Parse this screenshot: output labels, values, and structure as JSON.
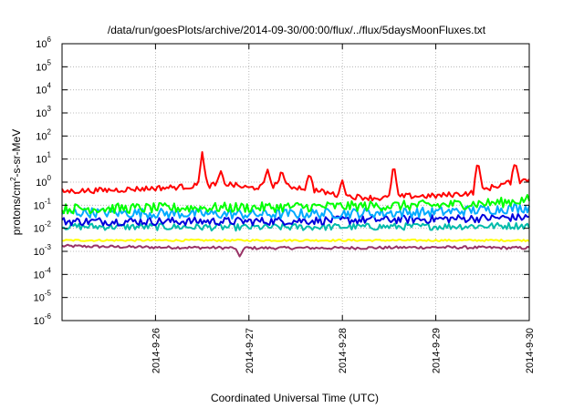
{
  "chart_data": {
    "type": "line",
    "title": "/data/run/goesPlots/archive/2014-09-30/00:00/flux/../flux/5daysMoonFluxes.txt",
    "xlabel": "Coordinated Universal Time (UTC)",
    "ylabel": {
      "prefix": "protons/cm",
      "superscript": "2",
      "suffix": "-s-sr-MeV"
    },
    "y_scale": "log",
    "ylim": [
      1e-06,
      1000000.0
    ],
    "y_ticks": [
      {
        "value": 1e-06,
        "base": "10",
        "exp": "-6"
      },
      {
        "value": 1e-05,
        "base": "10",
        "exp": "-5"
      },
      {
        "value": 0.0001,
        "base": "10",
        "exp": "-4"
      },
      {
        "value": 0.001,
        "base": "10",
        "exp": "-3"
      },
      {
        "value": 0.01,
        "base": "10",
        "exp": "-2"
      },
      {
        "value": 0.1,
        "base": "10",
        "exp": "-1"
      },
      {
        "value": 1,
        "base": "10",
        "exp": "0"
      },
      {
        "value": 10,
        "base": "10",
        "exp": "1"
      },
      {
        "value": 100,
        "base": "10",
        "exp": "2"
      },
      {
        "value": 1000,
        "base": "10",
        "exp": "3"
      },
      {
        "value": 10000,
        "base": "10",
        "exp": "4"
      },
      {
        "value": 100000,
        "base": "10",
        "exp": "5"
      },
      {
        "value": 1000000,
        "base": "10",
        "exp": "6"
      }
    ],
    "xlim": [
      "2014-09-25 00:00",
      "2014-09-30 00:00"
    ],
    "x_ticks": [
      {
        "value": "2014-09-26 00:00",
        "label": "2014-9-26"
      },
      {
        "value": "2014-09-27 00:00",
        "label": "2014-9-27"
      },
      {
        "value": "2014-09-28 00:00",
        "label": "2014-9-28"
      },
      {
        "value": "2014-09-29 00:00",
        "label": "2014-9-29"
      },
      {
        "value": "2014-09-30 00:00",
        "label": "2014-9-30"
      }
    ],
    "grid": true,
    "series": [
      {
        "color": "#ff0000",
        "baseline": [
          [
            0.0,
            0.4
          ],
          [
            0.5,
            0.45
          ],
          [
            1.0,
            0.55
          ],
          [
            1.2,
            0.6
          ],
          [
            1.5,
            0.7
          ],
          [
            1.8,
            0.8
          ],
          [
            2.0,
            0.55
          ],
          [
            2.3,
            0.75
          ],
          [
            2.6,
            0.55
          ],
          [
            3.0,
            0.25
          ],
          [
            3.4,
            0.2
          ],
          [
            3.7,
            0.25
          ],
          [
            4.0,
            0.25
          ],
          [
            4.4,
            0.35
          ],
          [
            4.6,
            0.6
          ],
          [
            4.8,
            1.0
          ],
          [
            5.0,
            1.3
          ]
        ],
        "spikes": [
          [
            1.5,
            20
          ],
          [
            1.7,
            3
          ],
          [
            2.2,
            3.5
          ],
          [
            2.35,
            3.5
          ],
          [
            2.65,
            2.5
          ],
          [
            3.0,
            1.2
          ],
          [
            3.55,
            7
          ],
          [
            4.45,
            10
          ],
          [
            4.85,
            8
          ]
        ],
        "noise": 0.12
      },
      {
        "color": "#00ff00",
        "baseline": [
          [
            0.0,
            0.07
          ],
          [
            2.0,
            0.08
          ],
          [
            4.0,
            0.1
          ],
          [
            4.7,
            0.13
          ],
          [
            5.0,
            0.18
          ]
        ],
        "spikes": [],
        "noise": 0.22
      },
      {
        "color": "#00aaff",
        "baseline": [
          [
            0.0,
            0.05
          ],
          [
            2.0,
            0.04
          ],
          [
            4.0,
            0.05
          ],
          [
            5.0,
            0.08
          ]
        ],
        "spikes": [],
        "noise": 0.22
      },
      {
        "color": "#0000dd",
        "baseline": [
          [
            0.0,
            0.02
          ],
          [
            2.0,
            0.02
          ],
          [
            4.0,
            0.025
          ],
          [
            5.0,
            0.03
          ]
        ],
        "spikes": [],
        "noise": 0.18
      },
      {
        "color": "#00bbaa",
        "baseline": [
          [
            0.0,
            0.012
          ],
          [
            2.0,
            0.011
          ],
          [
            4.0,
            0.012
          ],
          [
            5.0,
            0.013
          ]
        ],
        "spikes": [],
        "noise": 0.15
      },
      {
        "color": "#ffff00",
        "baseline": [
          [
            0.0,
            0.003
          ],
          [
            5.0,
            0.003
          ]
        ],
        "spikes": [],
        "noise": 0.04
      },
      {
        "color": "#993366",
        "baseline": [
          [
            0.0,
            0.0017
          ],
          [
            1.0,
            0.0015
          ],
          [
            2.0,
            0.0014
          ],
          [
            3.0,
            0.0014
          ],
          [
            4.0,
            0.0015
          ],
          [
            5.0,
            0.0014
          ]
        ],
        "spikes": [
          [
            1.9,
            0.0006
          ]
        ],
        "noise": 0.06
      }
    ]
  }
}
